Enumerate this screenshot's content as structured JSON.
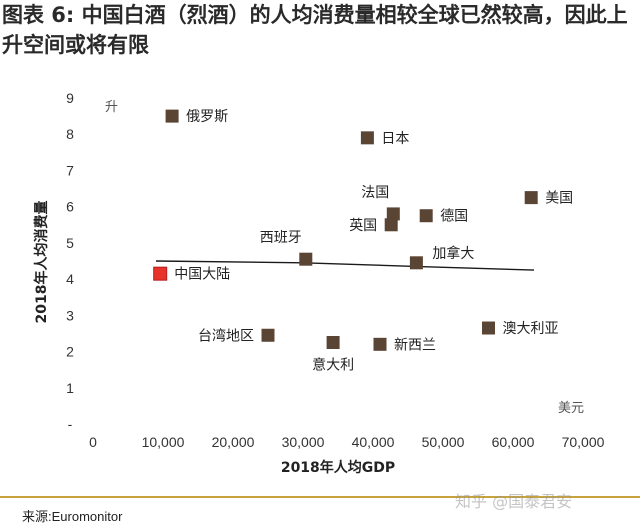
{
  "header": {
    "title": "图表 6: 中国白酒（烈酒）的人均消费量相较全球已然较高，因此上升空间或将有限"
  },
  "footer": {
    "source": "来源:Euromonitor",
    "watermark": "知乎 @国泰君安"
  },
  "colors": {
    "series": "#5a4535",
    "highlight": "#e8332a",
    "rule": "#c8a23a"
  },
  "chart_data": {
    "type": "scatter",
    "xlabel": "2018年人均GDP",
    "ylabel": "2018年人均消费量",
    "x_unit": "美元",
    "y_unit": "升",
    "xlim": [
      0,
      70000
    ],
    "ylim": [
      0,
      9
    ],
    "x_ticks": [
      "0",
      "10,000",
      "20,000",
      "30,000",
      "40,000",
      "50,000",
      "60,000",
      "70,000"
    ],
    "y_ticks": [
      "-",
      "1",
      "2",
      "3",
      "4",
      "5",
      "6",
      "7",
      "8",
      "9"
    ],
    "points": [
      {
        "label": "俄罗斯",
        "x": 11300,
        "y": 8.5,
        "highlight": false,
        "label_pos": "right"
      },
      {
        "label": "日本",
        "x": 39200,
        "y": 7.9,
        "highlight": false,
        "label_pos": "right"
      },
      {
        "label": "法国",
        "x": 42900,
        "y": 5.8,
        "highlight": false,
        "label_pos": "above-left"
      },
      {
        "label": "英国",
        "x": 42600,
        "y": 5.5,
        "highlight": false,
        "label_pos": "left"
      },
      {
        "label": "德国",
        "x": 47600,
        "y": 5.75,
        "highlight": false,
        "label_pos": "right"
      },
      {
        "label": "美国",
        "x": 62600,
        "y": 6.25,
        "highlight": false,
        "label_pos": "right"
      },
      {
        "label": "西班牙",
        "x": 30400,
        "y": 4.55,
        "highlight": false,
        "label_pos": "above-left"
      },
      {
        "label": "加拿大",
        "x": 46200,
        "y": 4.45,
        "highlight": false,
        "label_pos": "above-right"
      },
      {
        "label": "中国大陆",
        "x": 9600,
        "y": 4.15,
        "highlight": true,
        "label_pos": "right"
      },
      {
        "label": "台湾地区",
        "x": 25000,
        "y": 2.45,
        "highlight": false,
        "label_pos": "left"
      },
      {
        "label": "意大利",
        "x": 34300,
        "y": 2.25,
        "highlight": false,
        "label_pos": "below"
      },
      {
        "label": "新西兰",
        "x": 41000,
        "y": 2.2,
        "highlight": false,
        "label_pos": "right"
      },
      {
        "label": "澳大利亚",
        "x": 56500,
        "y": 2.65,
        "highlight": false,
        "label_pos": "right"
      }
    ],
    "trend_line": [
      [
        9000,
        4.5
      ],
      [
        30000,
        4.45
      ],
      [
        46000,
        4.35
      ],
      [
        63000,
        4.25
      ]
    ]
  }
}
